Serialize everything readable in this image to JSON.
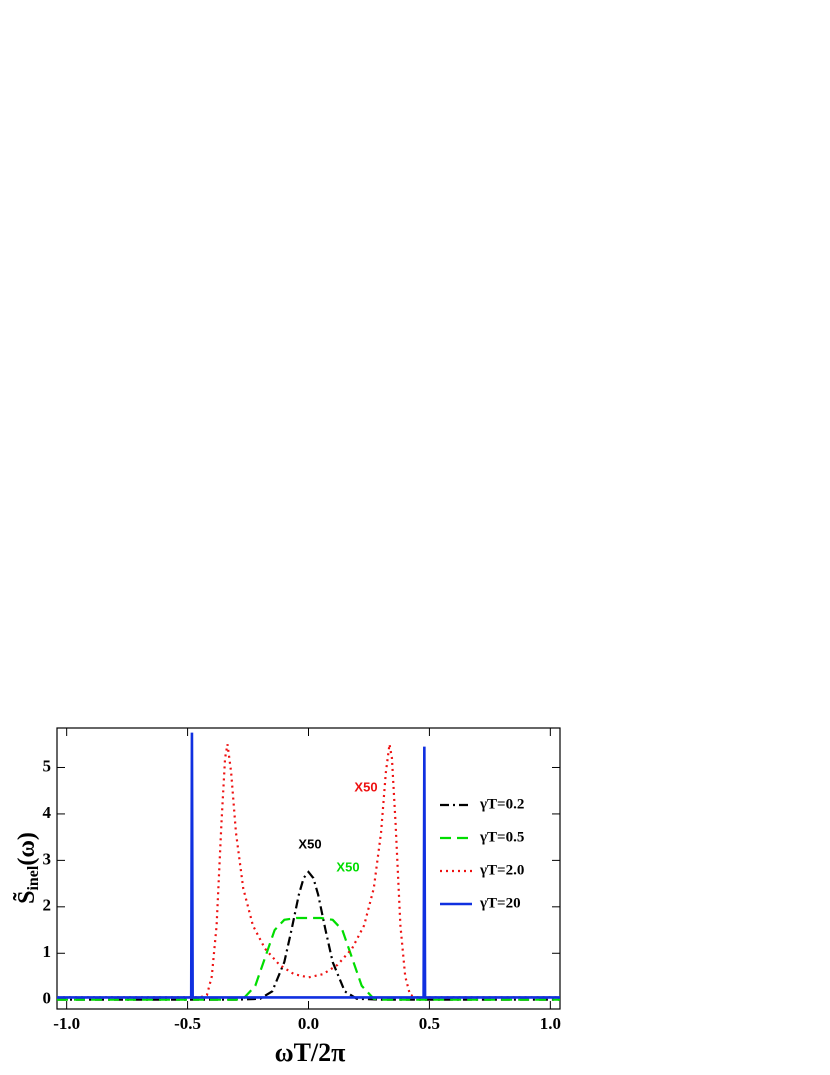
{
  "chart_data": {
    "type": "line",
    "xlabel": "ωT/2π",
    "ylabel": [
      "S̃",
      "inel",
      "(ω)"
    ],
    "xlim": [
      -1.04,
      1.04
    ],
    "ylim": [
      -0.2,
      5.85
    ],
    "xticks": [
      {
        "value": -1,
        "label": "-1.0"
      },
      {
        "value": -0.5,
        "label": "-0.5"
      },
      {
        "value": 0,
        "label": "0.0"
      },
      {
        "value": 0.5,
        "label": "0.5"
      },
      {
        "value": 1,
        "label": "1.0"
      }
    ],
    "yticks": [
      0,
      1,
      2,
      3,
      4,
      5
    ],
    "grid": false,
    "legend": "right",
    "series": [
      {
        "name": "γT=0.2",
        "color": "#000000",
        "dash": "9,4,2,4",
        "x": [
          -1.04,
          -0.3,
          -0.2,
          -0.15,
          -0.1,
          -0.07,
          -0.04,
          -0.02,
          0,
          0.02,
          0.04,
          0.07,
          0.1,
          0.15,
          0.2,
          0.3,
          1.04
        ],
        "values": [
          0,
          0,
          0.02,
          0.18,
          0.81,
          1.51,
          2.26,
          2.62,
          2.75,
          2.62,
          2.26,
          1.51,
          0.81,
          0.18,
          0.02,
          0,
          0
        ]
      },
      {
        "name": "γT=0.5",
        "color": "#00dd00",
        "dash": "11,6",
        "x": [
          -1.04,
          -0.3,
          -0.27,
          -0.22,
          -0.18,
          -0.14,
          -0.1,
          -0.05,
          0,
          0.05,
          0.1,
          0.14,
          0.18,
          0.22,
          0.27,
          0.3,
          1.04
        ],
        "values": [
          0,
          0,
          0.02,
          0.3,
          0.9,
          1.5,
          1.72,
          1.76,
          1.76,
          1.76,
          1.72,
          1.5,
          0.9,
          0.3,
          0.02,
          0,
          0
        ]
      },
      {
        "name": "γT=2.0",
        "color": "#ee1111",
        "dash": "2,4",
        "x": [
          -1.04,
          -0.45,
          -0.42,
          -0.4,
          -0.38,
          -0.36,
          -0.345,
          -0.335,
          -0.32,
          -0.3,
          -0.27,
          -0.23,
          -0.18,
          -0.12,
          -0.06,
          0,
          0.06,
          0.12,
          0.18,
          0.23,
          0.27,
          0.3,
          0.32,
          0.335,
          0.345,
          0.36,
          0.38,
          0.4,
          0.42,
          0.45,
          1.04
        ],
        "values": [
          0.05,
          0.05,
          0.1,
          0.5,
          1.6,
          3.8,
          5.2,
          5.5,
          4.9,
          3.6,
          2.4,
          1.6,
          1.1,
          0.75,
          0.55,
          0.48,
          0.55,
          0.75,
          1.1,
          1.6,
          2.4,
          3.6,
          4.9,
          5.5,
          5.2,
          3.8,
          1.6,
          0.5,
          0.1,
          0.05,
          0.05
        ]
      },
      {
        "name": "γT=20",
        "color": "#1030e0",
        "dash": "none",
        "x": [
          -1.04,
          -0.485,
          -0.482,
          -0.479,
          0.476,
          0.479,
          0.482,
          1.04
        ],
        "values": [
          0.05,
          0.05,
          5.75,
          0.05,
          0.05,
          5.45,
          0.05,
          0.05
        ]
      }
    ],
    "annotations": [
      {
        "text": "X50",
        "color": "#000000"
      },
      {
        "text": "X50",
        "color": "#00dd00"
      },
      {
        "text": "X50",
        "color": "#ee1111"
      }
    ]
  }
}
